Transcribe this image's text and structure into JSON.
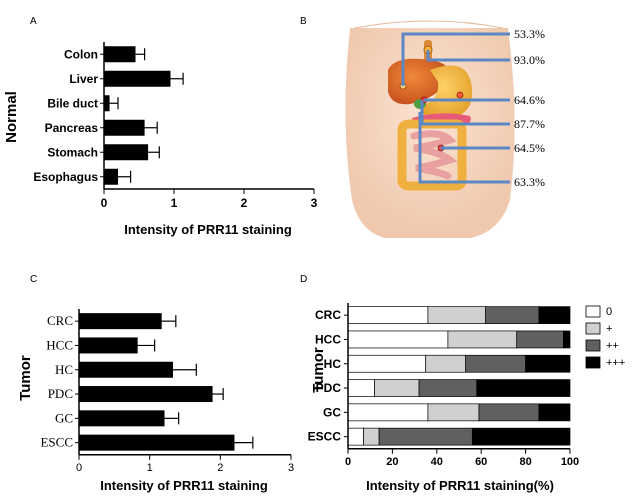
{
  "panels": {
    "a": "A",
    "b": "B",
    "c": "C",
    "d": "D"
  },
  "chart_data": [
    {
      "panel": "A",
      "type": "bar",
      "orientation": "horizontal",
      "ylabel": "Normal",
      "xlabel": "Intensity of PRR11 staining",
      "categories": [
        "Colon",
        "Liver",
        "Bile duct",
        "Pancreas",
        "Stomach",
        "Esophagus"
      ],
      "values": [
        0.45,
        0.95,
        0.08,
        0.58,
        0.63,
        0.2
      ],
      "errors": [
        0.13,
        0.18,
        0.12,
        0.18,
        0.16,
        0.18
      ],
      "xticks": [
        "0",
        "1",
        "2",
        "3"
      ],
      "xlim": [
        0,
        3
      ],
      "color": "#000000"
    },
    {
      "panel": "C",
      "type": "bar",
      "orientation": "horizontal",
      "ylabel": "Tumor",
      "xlabel": "Intensity of PRR11 staining",
      "categories": [
        "CRC",
        "HCC",
        "HC",
        "PDC",
        "GC",
        "ESCC"
      ],
      "values": [
        1.17,
        0.83,
        1.33,
        1.89,
        1.21,
        2.2
      ],
      "errors": [
        0.2,
        0.24,
        0.33,
        0.15,
        0.2,
        0.26
      ],
      "xticks": [
        "0",
        "1",
        "2",
        "3"
      ],
      "xlim": [
        0,
        3
      ],
      "color": "#000000"
    },
    {
      "panel": "D",
      "type": "bar",
      "orientation": "horizontal",
      "stacked": true,
      "ylabel": "Tumor",
      "xlabel": "Intensity of PRR11 staining(%)",
      "categories": [
        "CRC",
        "HCC",
        "HC",
        "PDC",
        "GC",
        "ESCC"
      ],
      "series": [
        {
          "name": "0",
          "color": "#ffffff",
          "values": [
            36,
            45,
            35,
            12,
            36,
            7
          ]
        },
        {
          "name": "+",
          "color": "#d0d0d0",
          "values": [
            26,
            31,
            18,
            20,
            23,
            7
          ]
        },
        {
          "name": "++",
          "color": "#606060",
          "values": [
            24,
            21,
            27,
            26,
            27,
            42
          ]
        },
        {
          "name": "+++",
          "color": "#000000",
          "values": [
            14,
            3,
            20,
            42,
            14,
            44
          ]
        }
      ],
      "xticks": [
        "0",
        "20",
        "40",
        "60",
        "80",
        "100"
      ],
      "xlim": [
        0,
        100
      ],
      "legend_position": "right"
    }
  ],
  "anatomy": {
    "labels": [
      "53.3%",
      "93.0%",
      "64.6%",
      "87.7%",
      "64.5%",
      "63.3%"
    ]
  }
}
